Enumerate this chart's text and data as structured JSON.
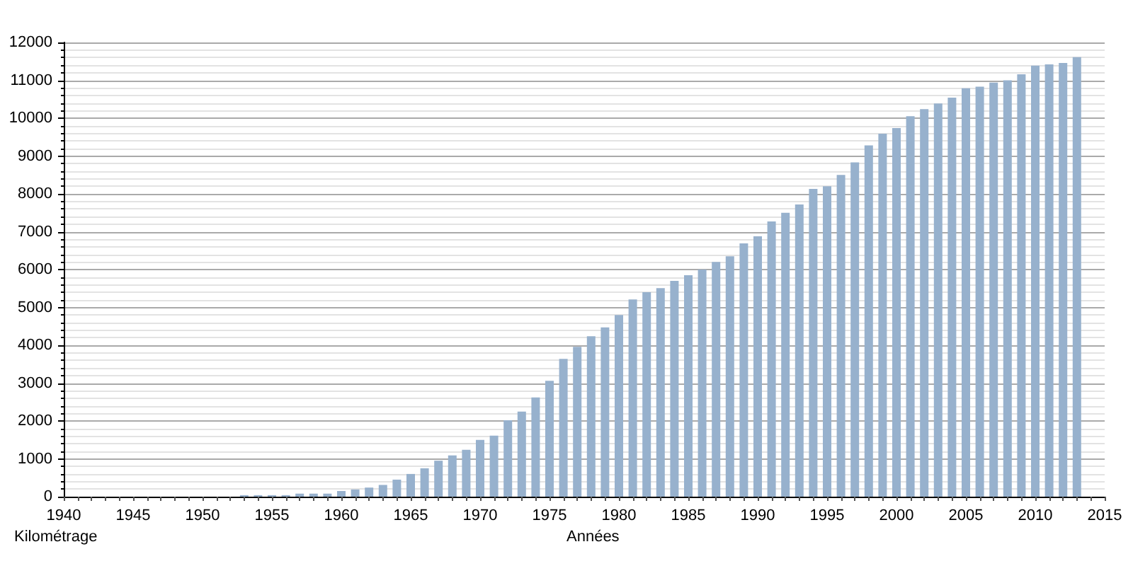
{
  "chart_data": {
    "type": "bar",
    "xlabel": "Années",
    "ylabel": "Kilométrage",
    "color": "#97b1cd",
    "x": [
      1953,
      1954,
      1955,
      1956,
      1957,
      1958,
      1959,
      1960,
      1961,
      1962,
      1963,
      1964,
      1965,
      1966,
      1967,
      1968,
      1969,
      1970,
      1971,
      1972,
      1973,
      1974,
      1975,
      1976,
      1977,
      1978,
      1979,
      1980,
      1981,
      1982,
      1983,
      1984,
      1985,
      1986,
      1987,
      1988,
      1989,
      1990,
      1991,
      1992,
      1993,
      1994,
      1995,
      1996,
      1997,
      1998,
      1999,
      2000,
      2001,
      2002,
      2003,
      2004,
      2005,
      2006,
      2007,
      2008,
      2009,
      2010,
      2011,
      2012,
      2013
    ],
    "values": [
      40,
      40,
      40,
      40,
      80,
      80,
      80,
      150,
      190,
      240,
      310,
      450,
      600,
      750,
      950,
      1090,
      1240,
      1500,
      1610,
      2020,
      2250,
      2620,
      3060,
      3640,
      3960,
      4240,
      4470,
      4800,
      5210,
      5400,
      5510,
      5700,
      5850,
      6000,
      6200,
      6350,
      6690,
      6880,
      7270,
      7500,
      7720,
      8130,
      8200,
      8500,
      8830,
      9280,
      9590,
      9740,
      10050,
      10240,
      10390,
      10540,
      10790,
      10830,
      10940,
      11000,
      11160,
      11390,
      11420,
      11460,
      11610
    ],
    "xlim": [
      1940,
      2015
    ],
    "xticks": [
      1940,
      {
        "value": 1941,
        "label": null
      },
      {
        "value": 1942,
        "label": null
      },
      {
        "value": 1943,
        "label": null
      },
      {
        "value": 1944,
        "label": null
      },
      1945,
      {
        "value": 1946,
        "label": null
      },
      {
        "value": 1947,
        "label": null
      },
      {
        "value": 1948,
        "label": null
      },
      {
        "value": 1949,
        "label": null
      },
      1950,
      {
        "value": 1951,
        "label": null
      },
      {
        "value": 1952,
        "label": null
      },
      {
        "value": 1953,
        "label": null
      },
      {
        "value": 1954,
        "label": null
      },
      1955,
      {
        "value": 1956,
        "label": null
      },
      {
        "value": 1957,
        "label": null
      },
      {
        "value": 1958,
        "label": null
      },
      {
        "value": 1959,
        "label": null
      },
      1960,
      {
        "value": 1961,
        "label": null
      },
      {
        "value": 1962,
        "label": null
      },
      {
        "value": 1963,
        "label": null
      },
      {
        "value": 1964,
        "label": null
      },
      1965,
      {
        "value": 1966,
        "label": null
      },
      {
        "value": 1967,
        "label": null
      },
      {
        "value": 1968,
        "label": null
      },
      {
        "value": 1969,
        "label": null
      },
      1970,
      {
        "value": 1971,
        "label": null
      },
      {
        "value": 1972,
        "label": null
      },
      {
        "value": 1973,
        "label": null
      },
      {
        "value": 1974,
        "label": null
      },
      1975,
      {
        "value": 1976,
        "label": null
      },
      {
        "value": 1977,
        "label": null
      },
      {
        "value": 1978,
        "label": null
      },
      {
        "value": 1979,
        "label": null
      },
      1980,
      {
        "value": 1981,
        "label": null
      },
      {
        "value": 1982,
        "label": null
      },
      {
        "value": 1983,
        "label": null
      },
      {
        "value": 1984,
        "label": null
      },
      1985,
      {
        "value": 1986,
        "label": null
      },
      {
        "value": 1987,
        "label": null
      },
      {
        "value": 1988,
        "label": null
      },
      {
        "value": 1989,
        "label": null
      },
      1990,
      {
        "value": 1991,
        "label": null
      },
      {
        "value": 1992,
        "label": null
      },
      {
        "value": 1993,
        "label": null
      },
      {
        "value": 1994,
        "label": null
      },
      1995,
      {
        "value": 1996,
        "label": null
      },
      {
        "value": 1997,
        "label": null
      },
      {
        "value": 1998,
        "label": null
      },
      {
        "value": 1999,
        "label": null
      },
      2000,
      {
        "value": 2001,
        "label": null
      },
      {
        "value": 2002,
        "label": null
      },
      {
        "value": 2003,
        "label": null
      },
      {
        "value": 2004,
        "label": null
      },
      2005,
      {
        "value": 2006,
        "label": null
      },
      {
        "value": 2007,
        "label": null
      },
      {
        "value": 2008,
        "label": null
      },
      {
        "value": 2009,
        "label": null
      },
      2010,
      {
        "value": 2011,
        "label": null
      },
      {
        "value": 2012,
        "label": null
      },
      {
        "value": 2013,
        "label": null
      },
      {
        "value": 2014,
        "label": null
      },
      2015
    ],
    "ylim": [
      0,
      12000
    ],
    "yticks": [
      0,
      1000,
      2000,
      3000,
      4000,
      5000,
      6000,
      7000,
      8000,
      9000,
      10000,
      11000,
      12000
    ],
    "grid": "y"
  }
}
